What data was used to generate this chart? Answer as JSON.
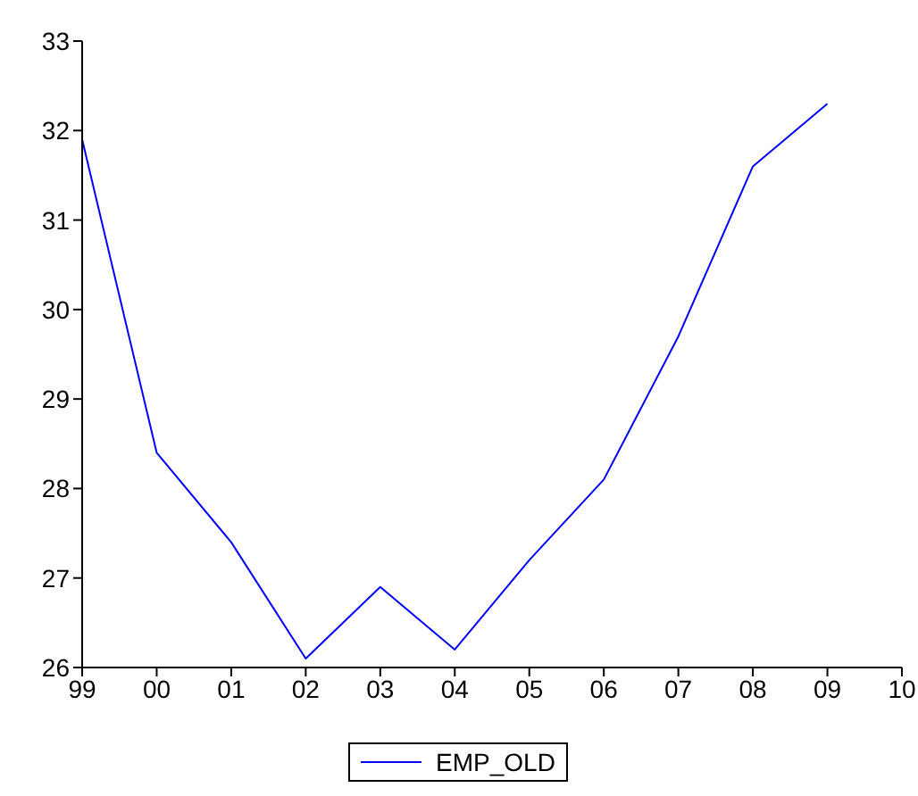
{
  "chart_data": {
    "type": "line",
    "categories": [
      "99",
      "00",
      "01",
      "02",
      "03",
      "04",
      "05",
      "06",
      "07",
      "08",
      "09",
      "10"
    ],
    "series": [
      {
        "name": "EMP_OLD",
        "color": "#0000ff",
        "values": [
          31.9,
          28.4,
          27.4,
          26.1,
          26.9,
          26.2,
          27.2,
          28.1,
          29.7,
          31.6,
          32.3,
          null
        ]
      }
    ],
    "ylim": [
      26,
      33
    ],
    "yticks": [
      26,
      27,
      28,
      29,
      30,
      31,
      32,
      33
    ],
    "legend": "bottom",
    "marker": "none",
    "line_style": "solid"
  }
}
